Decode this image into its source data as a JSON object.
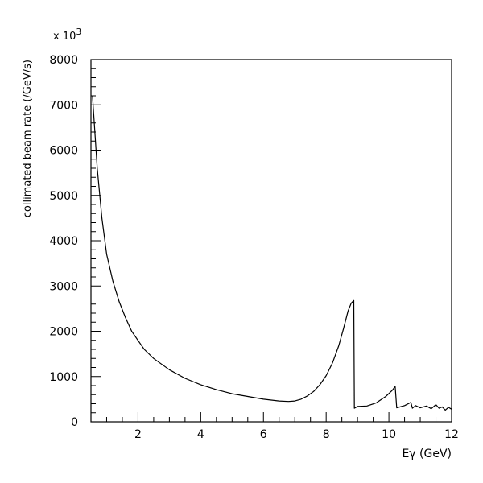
{
  "chart_data": {
    "type": "line",
    "title": "",
    "xlabel": "Eγ (GeV)",
    "ylabel": "collimated beam rate (/GeV/s)",
    "y_multiplier": "x 10",
    "y_multiplier_exp": "3",
    "xlim": [
      0.5,
      12
    ],
    "ylim": [
      0,
      8000
    ],
    "x_ticks": [
      2,
      4,
      6,
      8,
      10,
      12
    ],
    "y_ticks": [
      0,
      1000,
      2000,
      3000,
      4000,
      5000,
      6000,
      7000,
      8000
    ],
    "grid": false,
    "series": [
      {
        "x": [
          0.55,
          0.7,
          0.85,
          1.0,
          1.2,
          1.4,
          1.6,
          1.8,
          2.0,
          2.2,
          2.5,
          3.0,
          3.5,
          4.0,
          4.5,
          5.0,
          5.5,
          6.0,
          6.5,
          6.8,
          7.0,
          7.2,
          7.4,
          7.6,
          7.8,
          8.0,
          8.2,
          8.4,
          8.55,
          8.7,
          8.8,
          8.88,
          8.9,
          8.95,
          9.0,
          9.3,
          9.6,
          9.9,
          10.1,
          10.2,
          10.25,
          10.3,
          10.5,
          10.7,
          10.75,
          10.85,
          11.0,
          11.2,
          11.35,
          11.5,
          11.6,
          11.7,
          11.8,
          11.9,
          12.0
        ],
        "y": [
          7200,
          5600,
          4500,
          3700,
          3100,
          2650,
          2300,
          2000,
          1800,
          1600,
          1400,
          1150,
          960,
          820,
          710,
          620,
          560,
          500,
          460,
          450,
          460,
          500,
          570,
          670,
          820,
          1020,
          1300,
          1680,
          2050,
          2450,
          2620,
          2680,
          300,
          320,
          340,
          350,
          420,
          560,
          690,
          780,
          310,
          320,
          360,
          430,
          300,
          360,
          310,
          350,
          290,
          380,
          300,
          330,
          260,
          320,
          280
        ]
      }
    ]
  }
}
